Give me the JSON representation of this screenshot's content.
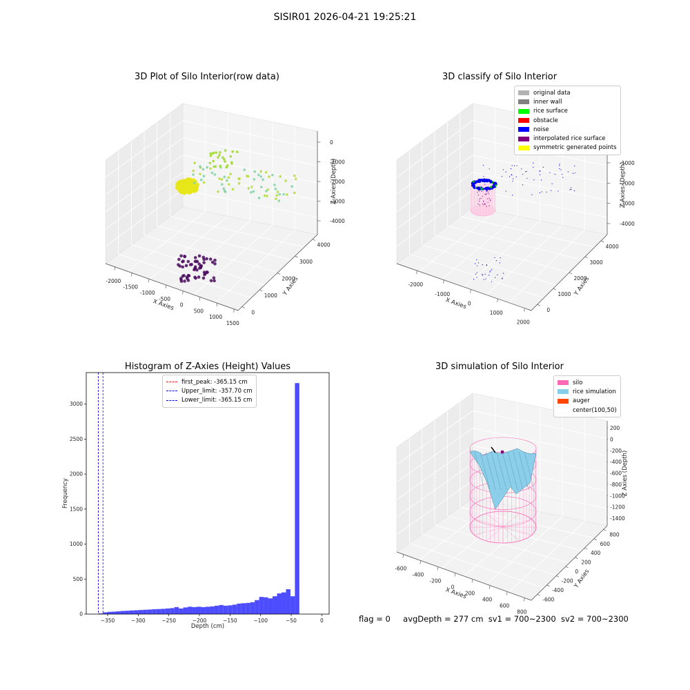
{
  "figure": {
    "suptitle": "SISIR01 2026-04-21 19:25:21"
  },
  "panels": {
    "p1": {
      "title": "3D Plot of Silo Interior(row data)",
      "x_label": "X Axies",
      "y_label": "Y Axies",
      "z_label": "Z Axies (Depth)",
      "x_ticks": [
        "-2000",
        "-1500",
        "-1000",
        "-500",
        "0",
        "500",
        "1000",
        "1500"
      ],
      "y_ticks": [
        "0",
        "1000",
        "2000",
        "3000",
        "4000"
      ],
      "z_ticks": [
        "0",
        "-1000",
        "-2000",
        "-3000",
        "-4000"
      ]
    },
    "p2": {
      "title": "3D classify of Silo Interior",
      "x_label": "X Axies",
      "y_label": "Y Axies",
      "z_label": "Z Axies (Depth)",
      "x_ticks": [
        "-2000",
        "-1000",
        "0",
        "1000",
        "2000"
      ],
      "y_ticks": [
        "0",
        "1000",
        "2000",
        "3000",
        "4000"
      ],
      "z_ticks": [
        "-1000",
        "-2000",
        "-3000",
        "-4000"
      ],
      "legend": [
        {
          "label": "original data",
          "color": "#b3b3b3"
        },
        {
          "label": "inner wall",
          "color": "#808080"
        },
        {
          "label": "rice surface",
          "color": "#00ff00"
        },
        {
          "label": "obstacle",
          "color": "#ff0000"
        },
        {
          "label": "noise",
          "color": "#0000ff"
        },
        {
          "label": "interpolated rice surface",
          "color": "#800080"
        },
        {
          "label": "symmetric generated points",
          "color": "#ffff00"
        }
      ]
    },
    "p4": {
      "title": "3D simulation of Silo Interior",
      "x_label": "X Axies",
      "y_label": "Y Axies",
      "z_label": "Z Axies (Depth)",
      "x_ticks": [
        "-600",
        "-400",
        "-200",
        "0",
        "200",
        "400",
        "600",
        "800"
      ],
      "y_ticks": [
        "-600",
        "-400",
        "-200",
        "0",
        "200",
        "400",
        "600",
        "800"
      ],
      "z_ticks": [
        "200",
        "0",
        "-200",
        "-400",
        "-600",
        "-800",
        "-1000",
        "-1200",
        "-1400"
      ],
      "legend": [
        {
          "label": "silo",
          "color": "#ff69b4"
        },
        {
          "label": "rice simulation",
          "color": "#87ceeb"
        },
        {
          "label": "auger",
          "color": "#ff4500"
        },
        {
          "label": "center(100,50)",
          "color": ""
        }
      ]
    }
  },
  "footer": {
    "flag": "flag = 0",
    "avg": "avgDepth = 277 cm",
    "sv1": "sv1 = 700~2300",
    "sv2": "sv2 = 700~2300"
  },
  "chart_data": [
    {
      "type": "scatter",
      "title": "3D Plot of Silo Interior(row data)",
      "xlabel": "X Axies",
      "ylabel": "Y Axies",
      "zlabel": "Z Axies (Depth)",
      "xlim": [
        -2200,
        1600
      ],
      "ylim": [
        0,
        4500
      ],
      "zlim": [
        -4500,
        0
      ],
      "grid": true
    },
    {
      "type": "scatter",
      "title": "3D classify of Silo Interior",
      "xlabel": "X Axies",
      "ylabel": "Y Axies",
      "zlabel": "Z Axies (Depth)",
      "xlim": [
        -2200,
        2100
      ],
      "ylim": [
        0,
        4500
      ],
      "zlim": [
        -4500,
        -500
      ],
      "grid": true,
      "legend_position": "top-right",
      "series": [
        {
          "name": "original data"
        },
        {
          "name": "inner wall"
        },
        {
          "name": "rice surface"
        },
        {
          "name": "obstacle"
        },
        {
          "name": "noise"
        },
        {
          "name": "interpolated rice surface"
        },
        {
          "name": "symmetric generated points"
        }
      ]
    },
    {
      "type": "bar",
      "title": "Histogram of Z-Axies (Height) Values",
      "xlabel": "Depth (cm)",
      "ylabel": "Frequency",
      "xlim": [
        -385,
        12
      ],
      "ylim": [
        0,
        3450
      ],
      "x_ticks": [
        -350,
        -300,
        -250,
        -200,
        -150,
        -100,
        -50,
        0
      ],
      "y_ticks": [
        0,
        500,
        1000,
        1500,
        2000,
        2500,
        3000
      ],
      "bin_start": -365.15,
      "bin_width": 7.3,
      "values": [
        10,
        25,
        32,
        35,
        40,
        45,
        48,
        52,
        55,
        58,
        62,
        65,
        70,
        72,
        75,
        80,
        85,
        100,
        80,
        95,
        105,
        100,
        105,
        100,
        105,
        110,
        120,
        130,
        120,
        125,
        135,
        150,
        155,
        160,
        170,
        200,
        245,
        240,
        225,
        255,
        295,
        310,
        355,
        255,
        3300
      ],
      "bar_color": "#4d4dff",
      "vlines": [
        {
          "label": "first_peak: -365.15 cm",
          "x": -365.15,
          "color": "#ff0000"
        },
        {
          "label": "Upper_limit: -357.70 cm",
          "x": -357.7,
          "color": "#0000ff"
        },
        {
          "label": "Lower_limit: -365.15 cm",
          "x": -365.15,
          "color": "#0000ff"
        }
      ],
      "legend_position": "top-center"
    },
    {
      "type": "area",
      "title": "3D simulation of Silo Interior",
      "xlabel": "X Axies",
      "ylabel": "Y Axies",
      "zlabel": "Z Axies (Depth)",
      "xlim": [
        -700,
        900
      ],
      "ylim": [
        -700,
        900
      ],
      "zlim": [
        -1500,
        250
      ],
      "grid": true,
      "legend_position": "top-right",
      "series": [
        {
          "name": "silo"
        },
        {
          "name": "rice simulation"
        },
        {
          "name": "auger"
        },
        {
          "name": "center(100,50)"
        }
      ]
    }
  ]
}
